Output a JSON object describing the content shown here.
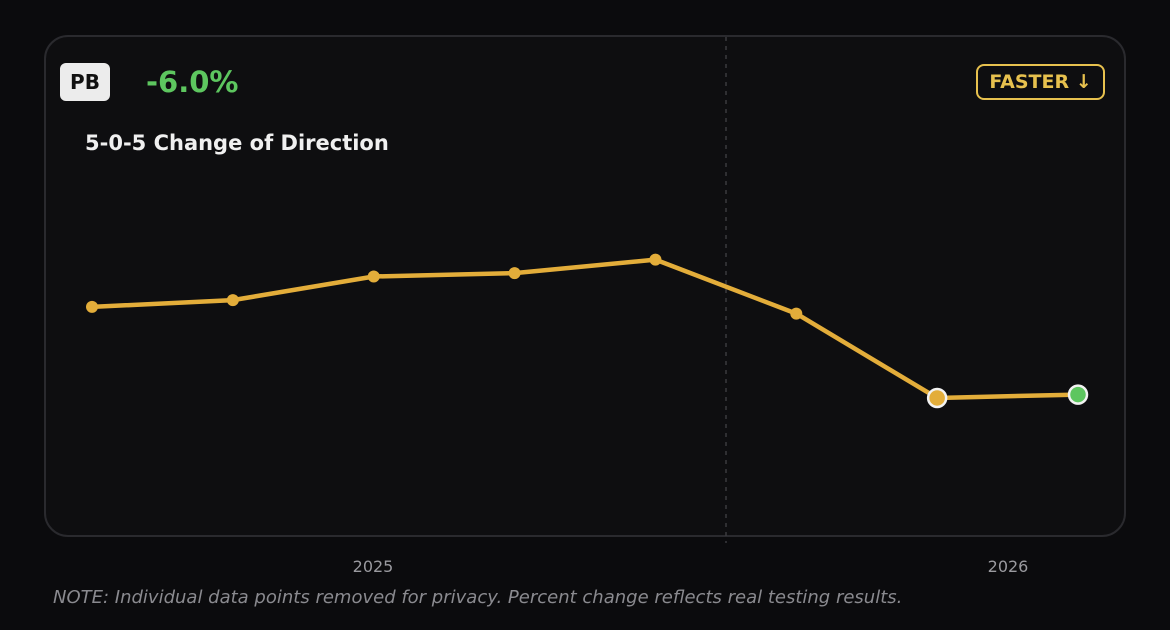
{
  "badge": {
    "label": "PB"
  },
  "change": {
    "text": "-6.0%",
    "color": "#5dc65f"
  },
  "direction": {
    "label": "FASTER ↓",
    "color": "#e7c14e"
  },
  "note": "NOTE: Individual data points removed for privacy. Percent change reflects real testing results.",
  "chart_data": {
    "type": "line",
    "title": "5-0-5 Change of Direction",
    "xlabel": "",
    "ylabel": "",
    "x_ticks": [
      "2025",
      "2026"
    ],
    "series": [
      {
        "color": "#e3ad3a",
        "values": [
          0.7,
          0.72,
          0.79,
          0.8,
          0.84,
          0.68,
          0.43,
          0.44
        ]
      }
    ],
    "highlight": {
      "personal_best_index": 6,
      "latest_index": 7,
      "latest_color": "#5dc65f"
    },
    "ylim": [
      0,
      1.5
    ],
    "grid": false,
    "year_divider": true
  }
}
